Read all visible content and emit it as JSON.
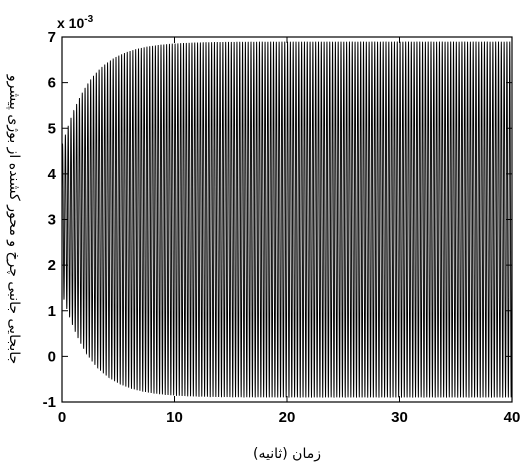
{
  "chart_data": {
    "type": "line",
    "title": "",
    "xlabel": "زمان (ثانیه)",
    "ylabel": "جابجایی جانبی چرخ و محور کشنده از بوژی پیشرو",
    "xlim": [
      0,
      40
    ],
    "ylim": [
      -1,
      7
    ],
    "y_scale_multiplier": "x 10",
    "y_scale_exponent": "-3",
    "x_ticks": [
      "0",
      "10",
      "20",
      "30",
      "40"
    ],
    "y_ticks": [
      "-1",
      "0",
      "1",
      "2",
      "3",
      "4",
      "5",
      "6",
      "7"
    ],
    "grid": false,
    "series": [
      {
        "signal": "damped-growth oscillation",
        "color": "#000000",
        "center": 3.0,
        "initial_amplitude": 1.6,
        "steady_amplitude": 3.9,
        "growth_time_constant_s": 2.5,
        "frequency_hz": 4.0,
        "x_start": 0,
        "x_end": 40
      }
    ]
  }
}
